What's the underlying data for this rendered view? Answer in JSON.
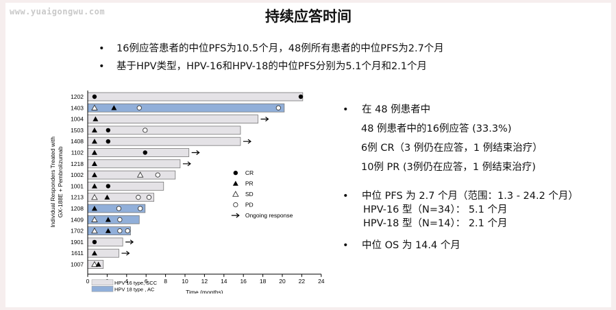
{
  "watermark": "www.yuaigongwu.com",
  "title": "持续应答时间",
  "top_bullets": [
    "16例应答患者的中位PFS为10.5个月，48例所有患者的中位PFS为2.7个月",
    "基于HPV类型，HPV-16和HPV-18的中位PFS分别为5.1个月和2.1个月"
  ],
  "right_panel": {
    "b1": "在 48 例患者中",
    "b1_sub": [
      "48 例患者中的16例应答 (33.3%)",
      "6例 CR（3 例仍在应答，1 例结束治疗）",
      "10例 PR (3例仍在应答，1 例结束治疗)"
    ],
    "b2": "中位 PFS 为 2.7 个月（范围：1.3 - 24.2 个月）",
    "b2_sub": [
      "HPV-16 型（N=34）：  5.1 个月",
      "HPV-18 型（N=14）：  2.1 个月"
    ],
    "b3": "中位 OS 为 14.4 个月"
  },
  "colors": {
    "hpv16": "#e4e2e6",
    "hpv18": "#91afd9",
    "bar_border": "#777777"
  },
  "chart_data": {
    "type": "swimmer",
    "ylabel": "Individual Responders Treated with GX-188E + Pembrolizumab",
    "xlabel": "Time (months)",
    "xlim": [
      0,
      24
    ],
    "xticks": [
      0,
      2,
      4,
      6,
      8,
      10,
      12,
      14,
      16,
      18,
      20,
      22,
      24
    ],
    "legend_markers": [
      {
        "symbol": "filled-circle",
        "label": "CR"
      },
      {
        "symbol": "filled-triangle",
        "label": "PR"
      },
      {
        "symbol": "open-triangle",
        "label": "SD"
      },
      {
        "symbol": "open-circle",
        "label": "PD"
      },
      {
        "symbol": "arrow",
        "label": "Ongoing response"
      }
    ],
    "legend_bars": [
      {
        "hpv": "16",
        "label": "HPV 16 type, SCC"
      },
      {
        "hpv": "18",
        "label": "HPV 18 type , AC"
      }
    ],
    "patients": [
      {
        "id": "1202",
        "hpv": "16",
        "duration": 22.1,
        "ongoing": false,
        "events": [
          {
            "t": 0.7,
            "s": "CR"
          },
          {
            "t": 21.9,
            "s": "CR"
          }
        ]
      },
      {
        "id": "1403",
        "hpv": "18",
        "duration": 20.2,
        "ongoing": false,
        "events": [
          {
            "t": 0.7,
            "s": "SD"
          },
          {
            "t": 2.7,
            "s": "PR"
          },
          {
            "t": 5.3,
            "s": "PD"
          },
          {
            "t": 19.6,
            "s": "PD"
          }
        ]
      },
      {
        "id": "1004",
        "hpv": "16",
        "duration": 17.5,
        "ongoing": true,
        "events": [
          {
            "t": 0.8,
            "s": "PR"
          }
        ]
      },
      {
        "id": "1503",
        "hpv": "16",
        "duration": 15.7,
        "ongoing": false,
        "events": [
          {
            "t": 0.7,
            "s": "PR"
          },
          {
            "t": 2.1,
            "s": "CR"
          },
          {
            "t": 5.9,
            "s": "PD"
          }
        ]
      },
      {
        "id": "1408",
        "hpv": "16",
        "duration": 15.7,
        "ongoing": true,
        "events": [
          {
            "t": 0.7,
            "s": "PR"
          },
          {
            "t": 2.1,
            "s": "CR"
          }
        ]
      },
      {
        "id": "1102",
        "hpv": "16",
        "duration": 10.4,
        "ongoing": true,
        "events": [
          {
            "t": 0.7,
            "s": "PR"
          },
          {
            "t": 5.9,
            "s": "CR"
          }
        ]
      },
      {
        "id": "1218",
        "hpv": "16",
        "duration": 9.5,
        "ongoing": true,
        "events": [
          {
            "t": 0.7,
            "s": "PR"
          }
        ]
      },
      {
        "id": "1002",
        "hpv": "16",
        "duration": 9.0,
        "ongoing": false,
        "events": [
          {
            "t": 0.7,
            "s": "PR"
          },
          {
            "t": 5.4,
            "s": "SD"
          },
          {
            "t": 7.2,
            "s": "PD"
          }
        ]
      },
      {
        "id": "1001",
        "hpv": "16",
        "duration": 7.8,
        "ongoing": false,
        "events": [
          {
            "t": 0.7,
            "s": "PR"
          },
          {
            "t": 2.1,
            "s": "CR"
          }
        ]
      },
      {
        "id": "1213",
        "hpv": "16",
        "duration": 6.8,
        "ongoing": false,
        "events": [
          {
            "t": 0.7,
            "s": "SD"
          },
          {
            "t": 2.0,
            "s": "PR"
          },
          {
            "t": 5.2,
            "s": "PD"
          },
          {
            "t": 6.3,
            "s": "PD"
          }
        ]
      },
      {
        "id": "1208",
        "hpv": "18",
        "duration": 5.9,
        "ongoing": false,
        "events": [
          {
            "t": 0.7,
            "s": "PR"
          },
          {
            "t": 3.2,
            "s": "PD"
          },
          {
            "t": 5.4,
            "s": "PD"
          }
        ]
      },
      {
        "id": "1409",
        "hpv": "18",
        "duration": 5.3,
        "ongoing": false,
        "events": [
          {
            "t": 0.7,
            "s": "SD"
          },
          {
            "t": 2.1,
            "s": "PR"
          },
          {
            "t": 3.3,
            "s": "PD"
          }
        ]
      },
      {
        "id": "1702",
        "hpv": "18",
        "duration": 4.4,
        "ongoing": false,
        "events": [
          {
            "t": 0.7,
            "s": "SD"
          },
          {
            "t": 2.1,
            "s": "PR"
          },
          {
            "t": 3.3,
            "s": "PD"
          },
          {
            "t": 4.1,
            "s": "PD"
          }
        ]
      },
      {
        "id": "1901",
        "hpv": "16",
        "duration": 3.6,
        "ongoing": true,
        "events": [
          {
            "t": 0.7,
            "s": "CR"
          }
        ]
      },
      {
        "id": "1611",
        "hpv": "16",
        "duration": 3.2,
        "ongoing": true,
        "events": [
          {
            "t": 0.7,
            "s": "PR"
          }
        ]
      },
      {
        "id": "1007",
        "hpv": "16",
        "duration": 1.6,
        "ongoing": false,
        "events": [
          {
            "t": 0.7,
            "s": "SD"
          },
          {
            "t": 1.1,
            "s": "PR"
          }
        ]
      }
    ]
  }
}
